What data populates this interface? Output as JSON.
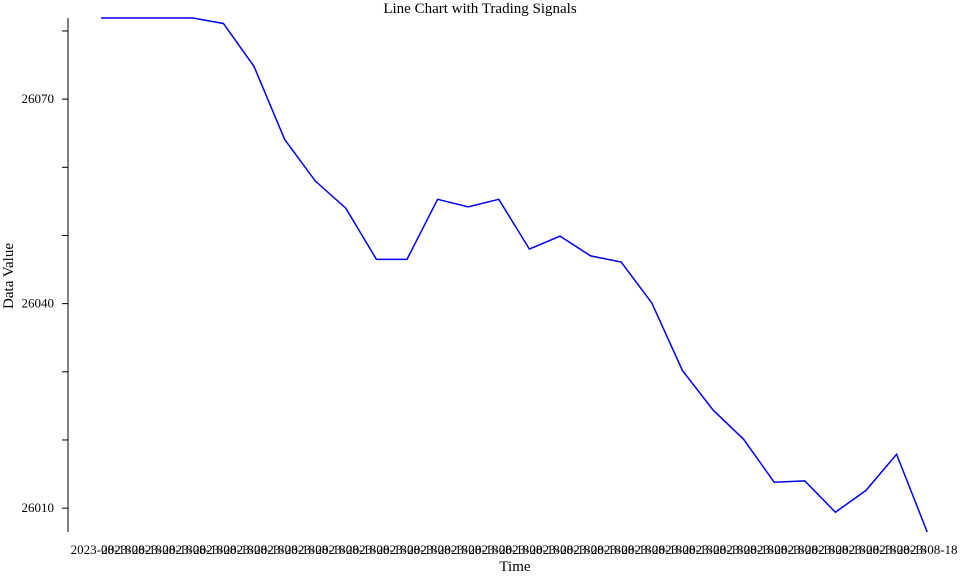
{
  "chart_data": {
    "type": "line",
    "title": "Line Chart with Trading Signals",
    "xlabel": "Time",
    "ylabel": "Data Value",
    "categories": [
      "2023-08-18",
      "2023-08-18",
      "2023-08-18",
      "2023-08-18",
      "2023-08-18",
      "2023-08-18",
      "2023-08-18",
      "2023-08-18",
      "2023-08-18",
      "2023-08-18",
      "2023-08-18",
      "2023-08-18",
      "2023-08-18",
      "2023-08-18",
      "2023-08-18",
      "2023-08-18",
      "2023-08-18",
      "2023-08-18",
      "2023-08-18",
      "2023-08-18",
      "2023-08-18",
      "2023-08-18",
      "2023-08-18",
      "2023-08-18",
      "2023-08-18",
      "2023-08-18",
      "2023-08-18",
      "2023-08-18"
    ],
    "series": [
      {
        "color": "#0000ee",
        "values": [
          26081.9,
          26081.9,
          26081.9,
          26081.9,
          26081.1,
          26074.8,
          26064.1,
          26058.0,
          26054.0,
          26046.5,
          26046.5,
          26055.3,
          26054.2,
          26055.3,
          26048.0,
          26049.9,
          26047.0,
          26046.1,
          26040.1,
          26030.2,
          26024.4,
          26020.1,
          26013.8,
          26014.0,
          26009.4,
          26012.6,
          26017.9,
          26006.5
        ]
      }
    ],
    "ylim": [
      26006.5,
      26081.9
    ],
    "yticks": [
      26010,
      26040,
      26070
    ],
    "yminor_ticks": [
      26020,
      26030,
      26050,
      26060,
      26080
    ]
  }
}
